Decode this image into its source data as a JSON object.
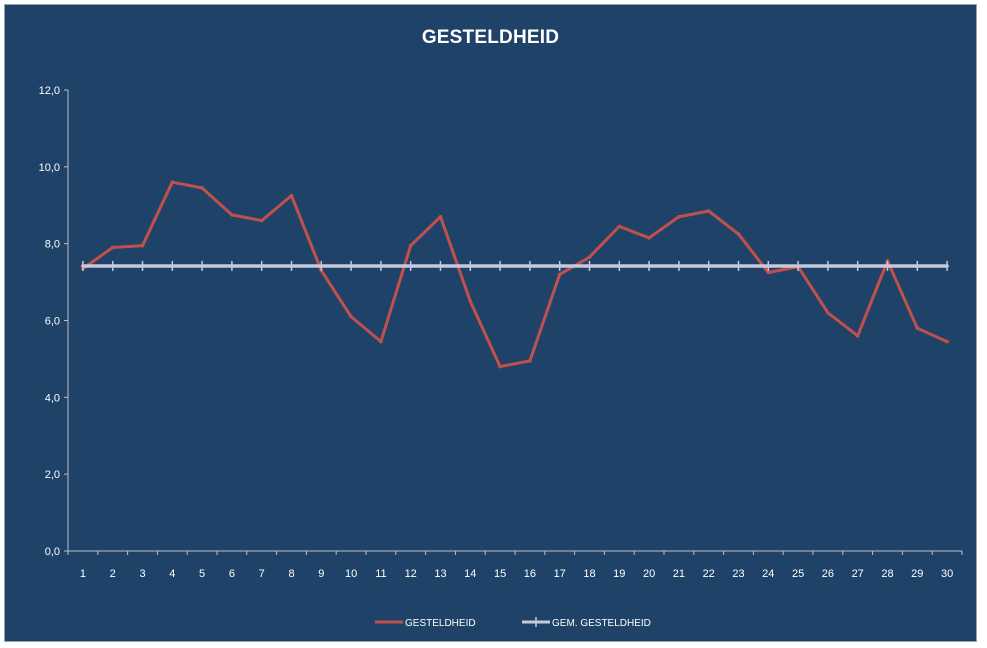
{
  "chart_data": {
    "type": "line",
    "title": "GESTELDHEID",
    "xlabel": "",
    "ylabel": "",
    "x": [
      "1",
      "2",
      "3",
      "4",
      "5",
      "6",
      "7",
      "8",
      "9",
      "10",
      "11",
      "12",
      "13",
      "14",
      "15",
      "16",
      "17",
      "18",
      "19",
      "20",
      "21",
      "22",
      "23",
      "24",
      "25",
      "26",
      "27",
      "28",
      "29",
      "30"
    ],
    "ylim": [
      0,
      12
    ],
    "yticks": [
      "0,0",
      "2,0",
      "4,0",
      "6,0",
      "8,0",
      "10,0",
      "12,0"
    ],
    "grid": false,
    "legend_position": "bottom",
    "series": [
      {
        "name": "GESTELDHEID",
        "color": "#c0504d",
        "values": [
          7.35,
          7.9,
          7.95,
          9.6,
          9.45,
          8.75,
          8.6,
          9.25,
          7.3,
          6.1,
          5.45,
          7.95,
          8.7,
          6.5,
          4.8,
          4.95,
          7.2,
          7.65,
          8.45,
          8.15,
          8.7,
          8.85,
          8.25,
          7.25,
          7.4,
          6.2,
          5.6,
          7.55,
          5.8,
          5.45
        ]
      },
      {
        "name": "GEM. GESTELDHEID",
        "color": "#c8c8dc",
        "values": [
          7.42,
          7.42,
          7.42,
          7.42,
          7.42,
          7.42,
          7.42,
          7.42,
          7.42,
          7.42,
          7.42,
          7.42,
          7.42,
          7.42,
          7.42,
          7.42,
          7.42,
          7.42,
          7.42,
          7.42,
          7.42,
          7.42,
          7.42,
          7.42,
          7.42,
          7.42,
          7.42,
          7.42,
          7.42,
          7.42
        ]
      }
    ]
  }
}
